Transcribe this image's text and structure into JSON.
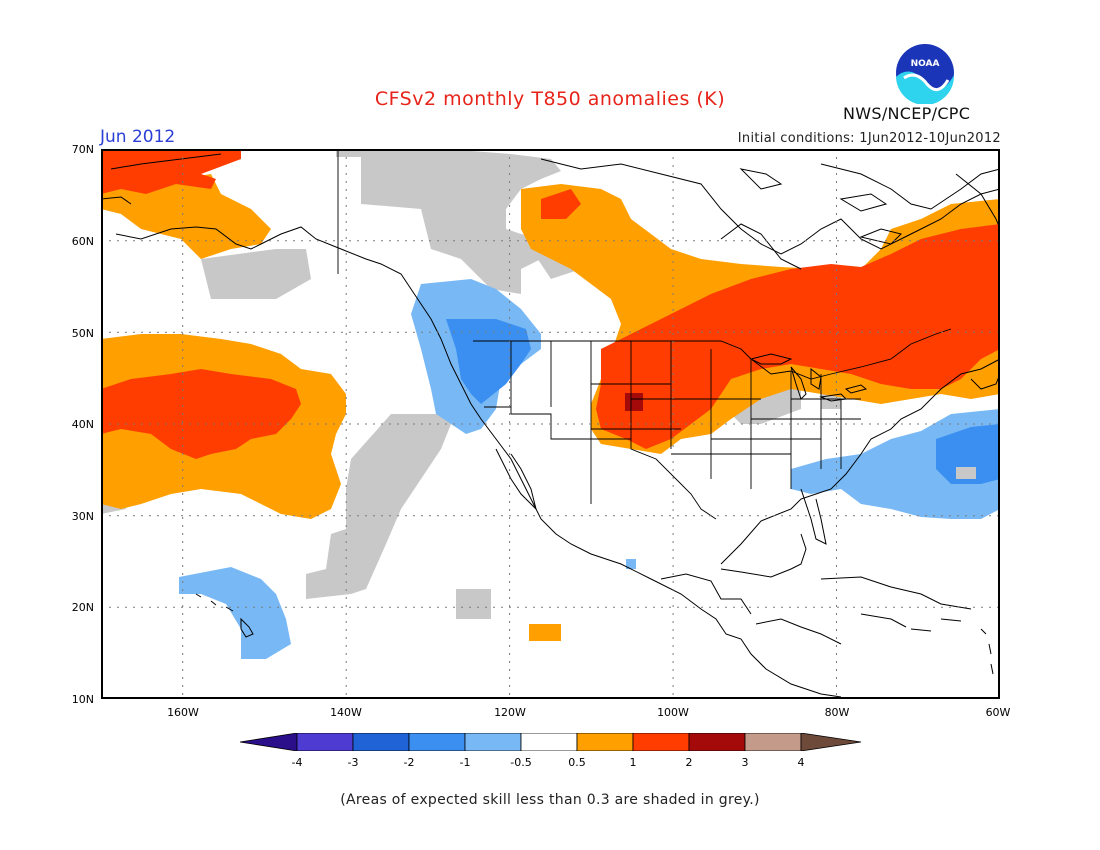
{
  "header": {
    "title": "CFSv2 monthly T850 anomalies (K)",
    "period": "Jun 2012",
    "initial_conditions": "Initial conditions: 1Jun2012-10Jun2012",
    "agency": "NWS/NCEP/CPC",
    "logo_text": "NOAA"
  },
  "axes": {
    "lat_labels": [
      "70N",
      "60N",
      "50N",
      "40N",
      "30N",
      "20N",
      "10N"
    ],
    "lon_labels": [
      "160W",
      "140W",
      "120W",
      "100W",
      "80W",
      "60W"
    ],
    "lat_range": [
      10,
      70
    ],
    "lon_range": [
      -170,
      -60
    ],
    "grid": "dotted"
  },
  "colorbar": {
    "labels": [
      "-4",
      "-3",
      "-2",
      "-1",
      "-0.5",
      "0.5",
      "1",
      "2",
      "3",
      "4"
    ],
    "colors": [
      "#2b0e8a",
      "#4e3bd1",
      "#1f63d6",
      "#3b8ff0",
      "#78b9f5",
      "#ffffff",
      "#ff9f00",
      "#ff3d00",
      "#a50a0a",
      "#c49a8a",
      "#6e4a3b"
    ]
  },
  "footnote": "(Areas of expected skill less than 0.3 are shaded in grey.)",
  "colors": {
    "grey_low_skill": "#c8c8c8",
    "anom_0_5_to_1": "#ff9f00",
    "anom_1_to_2": "#ff3d00",
    "anom_2_to_3": "#a50a0a",
    "anom_neg_0_5_to_neg_1": "#78b9f5",
    "anom_neg_1_to_neg_2": "#3b8ff0"
  }
}
